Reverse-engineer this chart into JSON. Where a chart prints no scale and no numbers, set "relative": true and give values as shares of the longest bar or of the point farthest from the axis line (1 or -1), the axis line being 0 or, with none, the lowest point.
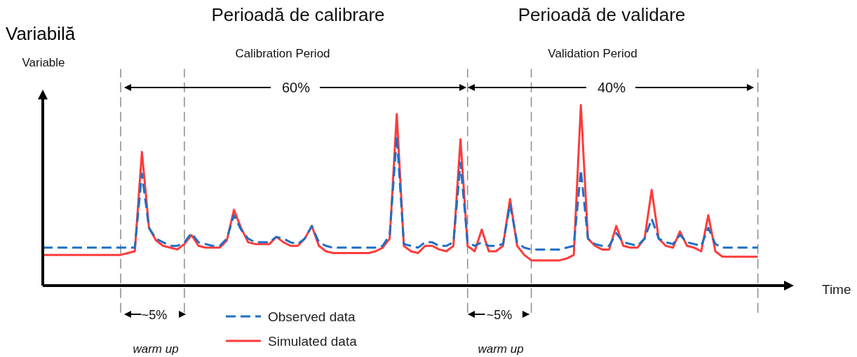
{
  "chart_data": {
    "type": "line",
    "relative": true,
    "xlabel": "Time",
    "ylabel": "Variabilă",
    "categories": [
      null,
      null,
      null,
      null,
      null,
      null,
      null,
      null,
      null,
      null,
      null,
      null,
      null,
      null,
      null,
      null,
      null,
      null,
      null,
      null,
      null,
      null,
      null,
      null,
      null,
      null,
      null,
      null,
      null,
      null,
      null,
      null,
      null,
      null,
      null,
      null,
      null,
      null,
      null,
      null,
      null,
      null,
      null,
      null,
      null,
      null,
      null,
      null,
      null,
      null,
      null,
      null,
      null,
      null,
      null,
      null,
      null,
      null,
      null,
      null,
      null,
      null,
      null,
      null,
      null,
      null,
      null,
      null,
      null,
      null,
      null,
      null,
      null,
      null,
      null,
      null,
      null,
      null,
      null,
      null,
      null,
      null,
      null,
      null,
      null,
      null,
      null,
      null,
      null,
      null,
      null,
      null,
      null,
      null,
      null,
      null,
      null,
      null,
      null,
      null,
      null,
      null,
      null,
      null,
      null,
      null
    ],
    "series": [
      {
        "name": "Observed data",
        "color": "#1f6fc5",
        "line_style": "dashed",
        "values": [
          0.21,
          0.21,
          0.21,
          0.21,
          0.21,
          0.21,
          0.21,
          0.21,
          0.21,
          0.21,
          0.21,
          0.21,
          0.21,
          0.21,
          0.62,
          0.32,
          0.26,
          0.24,
          0.22,
          0.22,
          0.24,
          0.29,
          0.24,
          0.23,
          0.22,
          0.22,
          0.26,
          0.39,
          0.31,
          0.26,
          0.24,
          0.24,
          0.24,
          0.27,
          0.26,
          0.24,
          0.23,
          0.26,
          0.33,
          0.24,
          0.22,
          0.21,
          0.21,
          0.21,
          0.21,
          0.21,
          0.21,
          0.21,
          0.22,
          0.28,
          0.83,
          0.23,
          0.22,
          0.21,
          0.24,
          0.24,
          0.22,
          0.22,
          0.24,
          0.68,
          0.24,
          0.22,
          0.24,
          0.22,
          0.22,
          0.23,
          0.45,
          0.24,
          0.21,
          0.2,
          0.2,
          0.2,
          0.2,
          0.2,
          0.21,
          0.22,
          0.64,
          0.26,
          0.23,
          0.22,
          0.22,
          0.29,
          0.24,
          0.23,
          0.22,
          0.26,
          0.37,
          0.26,
          0.24,
          0.23,
          0.28,
          0.24,
          0.23,
          0.22,
          0.32,
          0.23,
          0.21,
          0.21,
          0.21,
          0.21,
          0.21,
          0.21,
          null,
          null,
          null,
          null
        ]
      },
      {
        "name": "Simulated data",
        "color": "#ff3b3b",
        "line_style": "solid",
        "values": [
          0.17,
          0.17,
          0.17,
          0.17,
          0.17,
          0.17,
          0.17,
          0.17,
          0.17,
          0.17,
          0.17,
          0.17,
          0.18,
          0.19,
          0.74,
          0.32,
          0.25,
          0.22,
          0.21,
          0.2,
          0.23,
          0.28,
          0.22,
          0.21,
          0.21,
          0.21,
          0.25,
          0.42,
          0.32,
          0.24,
          0.23,
          0.23,
          0.23,
          0.27,
          0.24,
          0.22,
          0.22,
          0.26,
          0.33,
          0.22,
          0.19,
          0.18,
          0.18,
          0.18,
          0.18,
          0.18,
          0.18,
          0.19,
          0.21,
          0.26,
          0.95,
          0.22,
          0.19,
          0.18,
          0.22,
          0.22,
          0.2,
          0.19,
          0.22,
          0.81,
          0.22,
          0.19,
          0.31,
          0.19,
          0.19,
          0.22,
          0.48,
          0.22,
          0.17,
          0.14,
          0.14,
          0.14,
          0.14,
          0.14,
          0.15,
          0.17,
          1,
          0.26,
          0.22,
          0.2,
          0.2,
          0.33,
          0.22,
          0.21,
          0.21,
          0.26,
          0.53,
          0.26,
          0.22,
          0.21,
          0.3,
          0.22,
          0.21,
          0.19,
          0.39,
          0.19,
          0.16,
          0.16,
          0.16,
          0.16,
          0.16,
          0.16,
          null,
          null,
          null,
          null
        ]
      }
    ],
    "annotations": [
      "Perioadă de calibrare",
      "Calibration Period",
      "Perioadă de validare",
      "Validation Period",
      "60%",
      "40%",
      "~5%",
      "warm up",
      "~5%",
      "warm up",
      "Variable"
    ],
    "marker": "none",
    "grid": "x",
    "legend": "bottom"
  }
}
